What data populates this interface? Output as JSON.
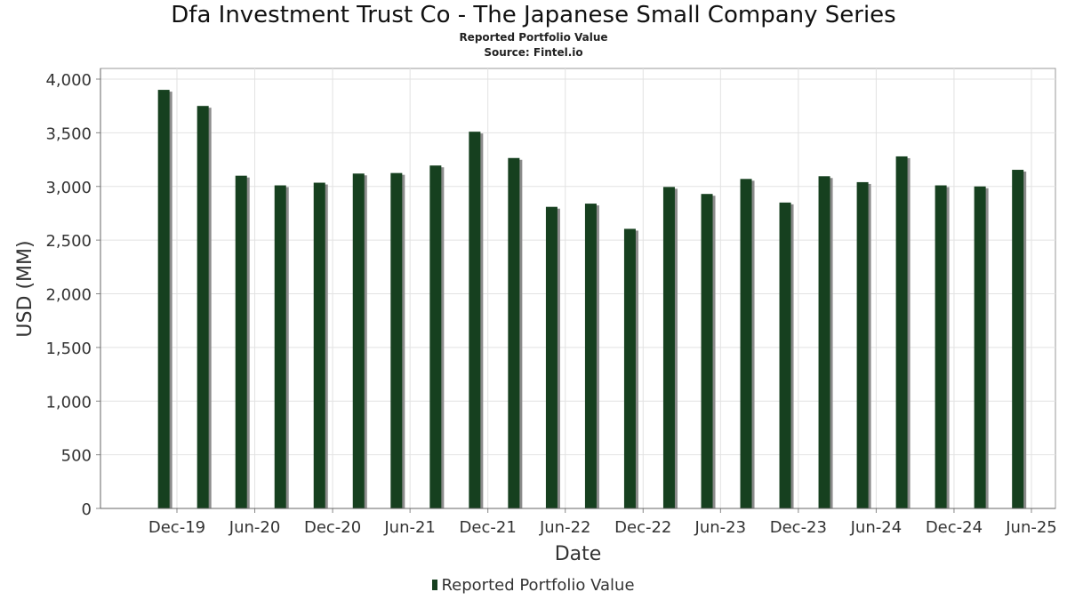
{
  "chart_data": {
    "type": "bar",
    "title": "Dfa Investment Trust Co - The Japanese Small Company Series",
    "subtitle": "Reported Portfolio Value",
    "source": "Source: Fintel.io",
    "xlabel": "Date",
    "ylabel": "USD (MM)",
    "ylim": [
      0,
      4000
    ],
    "yticks": [
      0,
      500,
      1000,
      1500,
      2000,
      2500,
      3000,
      3500,
      4000
    ],
    "ytick_labels": [
      "0",
      "500",
      "1,000",
      "1,500",
      "2,000",
      "2,500",
      "3,000",
      "3,500",
      "4,000"
    ],
    "xtick_labels": [
      "Dec-19",
      "Jun-20",
      "Dec-20",
      "Jun-21",
      "Dec-21",
      "Jun-22",
      "Dec-22",
      "Jun-23",
      "Dec-23",
      "Jun-24",
      "Dec-24",
      "Jun-25"
    ],
    "grid": true,
    "legend_position": "bottom",
    "series": [
      {
        "name": "Reported Portfolio Value",
        "color": "#16401f",
        "x": [
          "2019-10-31",
          "2020-01-31",
          "2020-04-30",
          "2020-07-31",
          "2020-10-31",
          "2021-01-31",
          "2021-04-30",
          "2021-07-31",
          "2021-10-31",
          "2022-01-31",
          "2022-04-30",
          "2022-07-31",
          "2022-10-31",
          "2023-01-31",
          "2023-04-30",
          "2023-07-31",
          "2023-10-31",
          "2024-01-31",
          "2024-04-30",
          "2024-07-31",
          "2024-10-31",
          "2025-01-31",
          "2025-04-30"
        ],
        "values": [
          3900,
          3750,
          3100,
          3010,
          3035,
          3120,
          3125,
          3195,
          3510,
          3265,
          2810,
          2840,
          2605,
          2995,
          2930,
          3070,
          2850,
          3095,
          3040,
          3280,
          3010,
          3000,
          3155
        ]
      }
    ]
  }
}
